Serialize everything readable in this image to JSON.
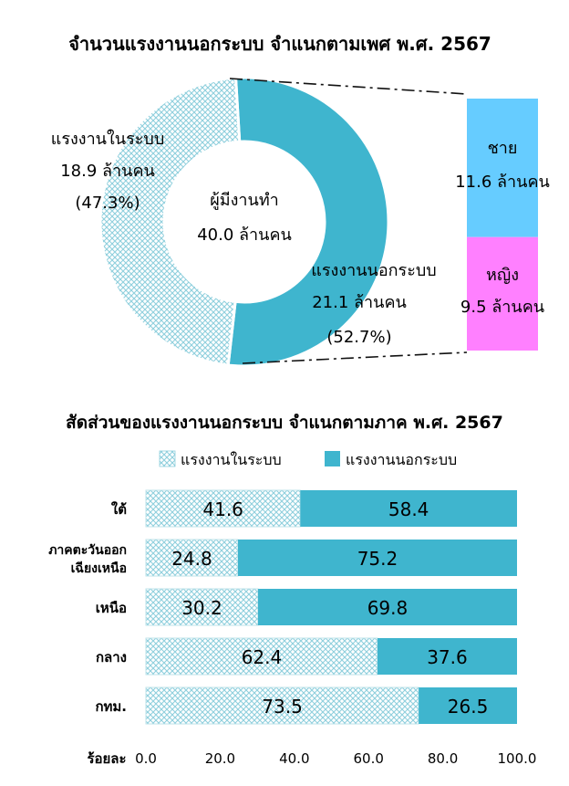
{
  "chart_data": [
    {
      "type": "pie",
      "title": "จำนวนแรงงานนอกระบบ จำแนกตามเพศ พ.ศ. 2567",
      "center_label": {
        "line1": "ผู้มีงานทำ",
        "line2": "40.0 ล้านคน"
      },
      "slices": [
        {
          "label": "แรงงานในระบบ",
          "value_text": "18.9 ล้านคน",
          "percent_text": "(47.3%)",
          "value": 18.9,
          "percent": 47.3,
          "color": "#B7DDE6",
          "pattern": "crosshatch"
        },
        {
          "label": "แรงงานนอกระบบ",
          "value_text": "21.1 ล้านคน",
          "percent_text": "(52.7%)",
          "value": 21.1,
          "percent": 52.7,
          "color": "#3FB5CE",
          "pattern": "solid"
        }
      ],
      "breakdown": [
        {
          "label": "ชาย",
          "value_text": "11.6 ล้านคน",
          "value": 11.6,
          "color": "#66CCFF"
        },
        {
          "label": "หญิง",
          "value_text": "9.5 ล้านคน",
          "value": 9.5,
          "color": "#FF80FF"
        }
      ]
    },
    {
      "type": "bar",
      "orientation": "horizontal",
      "stacked": true,
      "title": "สัดส่วนของแรงงานนอกระบบ จำแนกตามภาค พ.ศ. 2567",
      "xlabel": "ร้อยละ",
      "xlim": [
        0,
        100
      ],
      "xticks": [
        "0.0",
        "20.0",
        "40.0",
        "60.0",
        "80.0",
        "100.0"
      ],
      "legend_position": "top",
      "categories": [
        {
          "lines": [
            "ใต้"
          ]
        },
        {
          "lines": [
            "ภาคตะวันออก",
            "เฉียงเหนือ"
          ]
        },
        {
          "lines": [
            "เหนือ"
          ]
        },
        {
          "lines": [
            "กลาง"
          ]
        },
        {
          "lines": [
            "กทม."
          ]
        }
      ],
      "series": [
        {
          "name": "แรงงานในระบบ",
          "color": "#B7DDE6",
          "pattern": "crosshatch",
          "values": [
            41.6,
            24.8,
            30.2,
            62.4,
            73.5
          ],
          "labels": [
            "41.6",
            "24.8",
            "30.2",
            "62.4",
            "73.5"
          ]
        },
        {
          "name": "แรงงานนอกระบบ",
          "color": "#3FB5CE",
          "pattern": "solid",
          "values": [
            58.4,
            75.2,
            69.8,
            37.6,
            26.5
          ],
          "labels": [
            "58.4",
            "75.2",
            "69.8",
            "37.6",
            "26.5"
          ]
        }
      ]
    }
  ]
}
